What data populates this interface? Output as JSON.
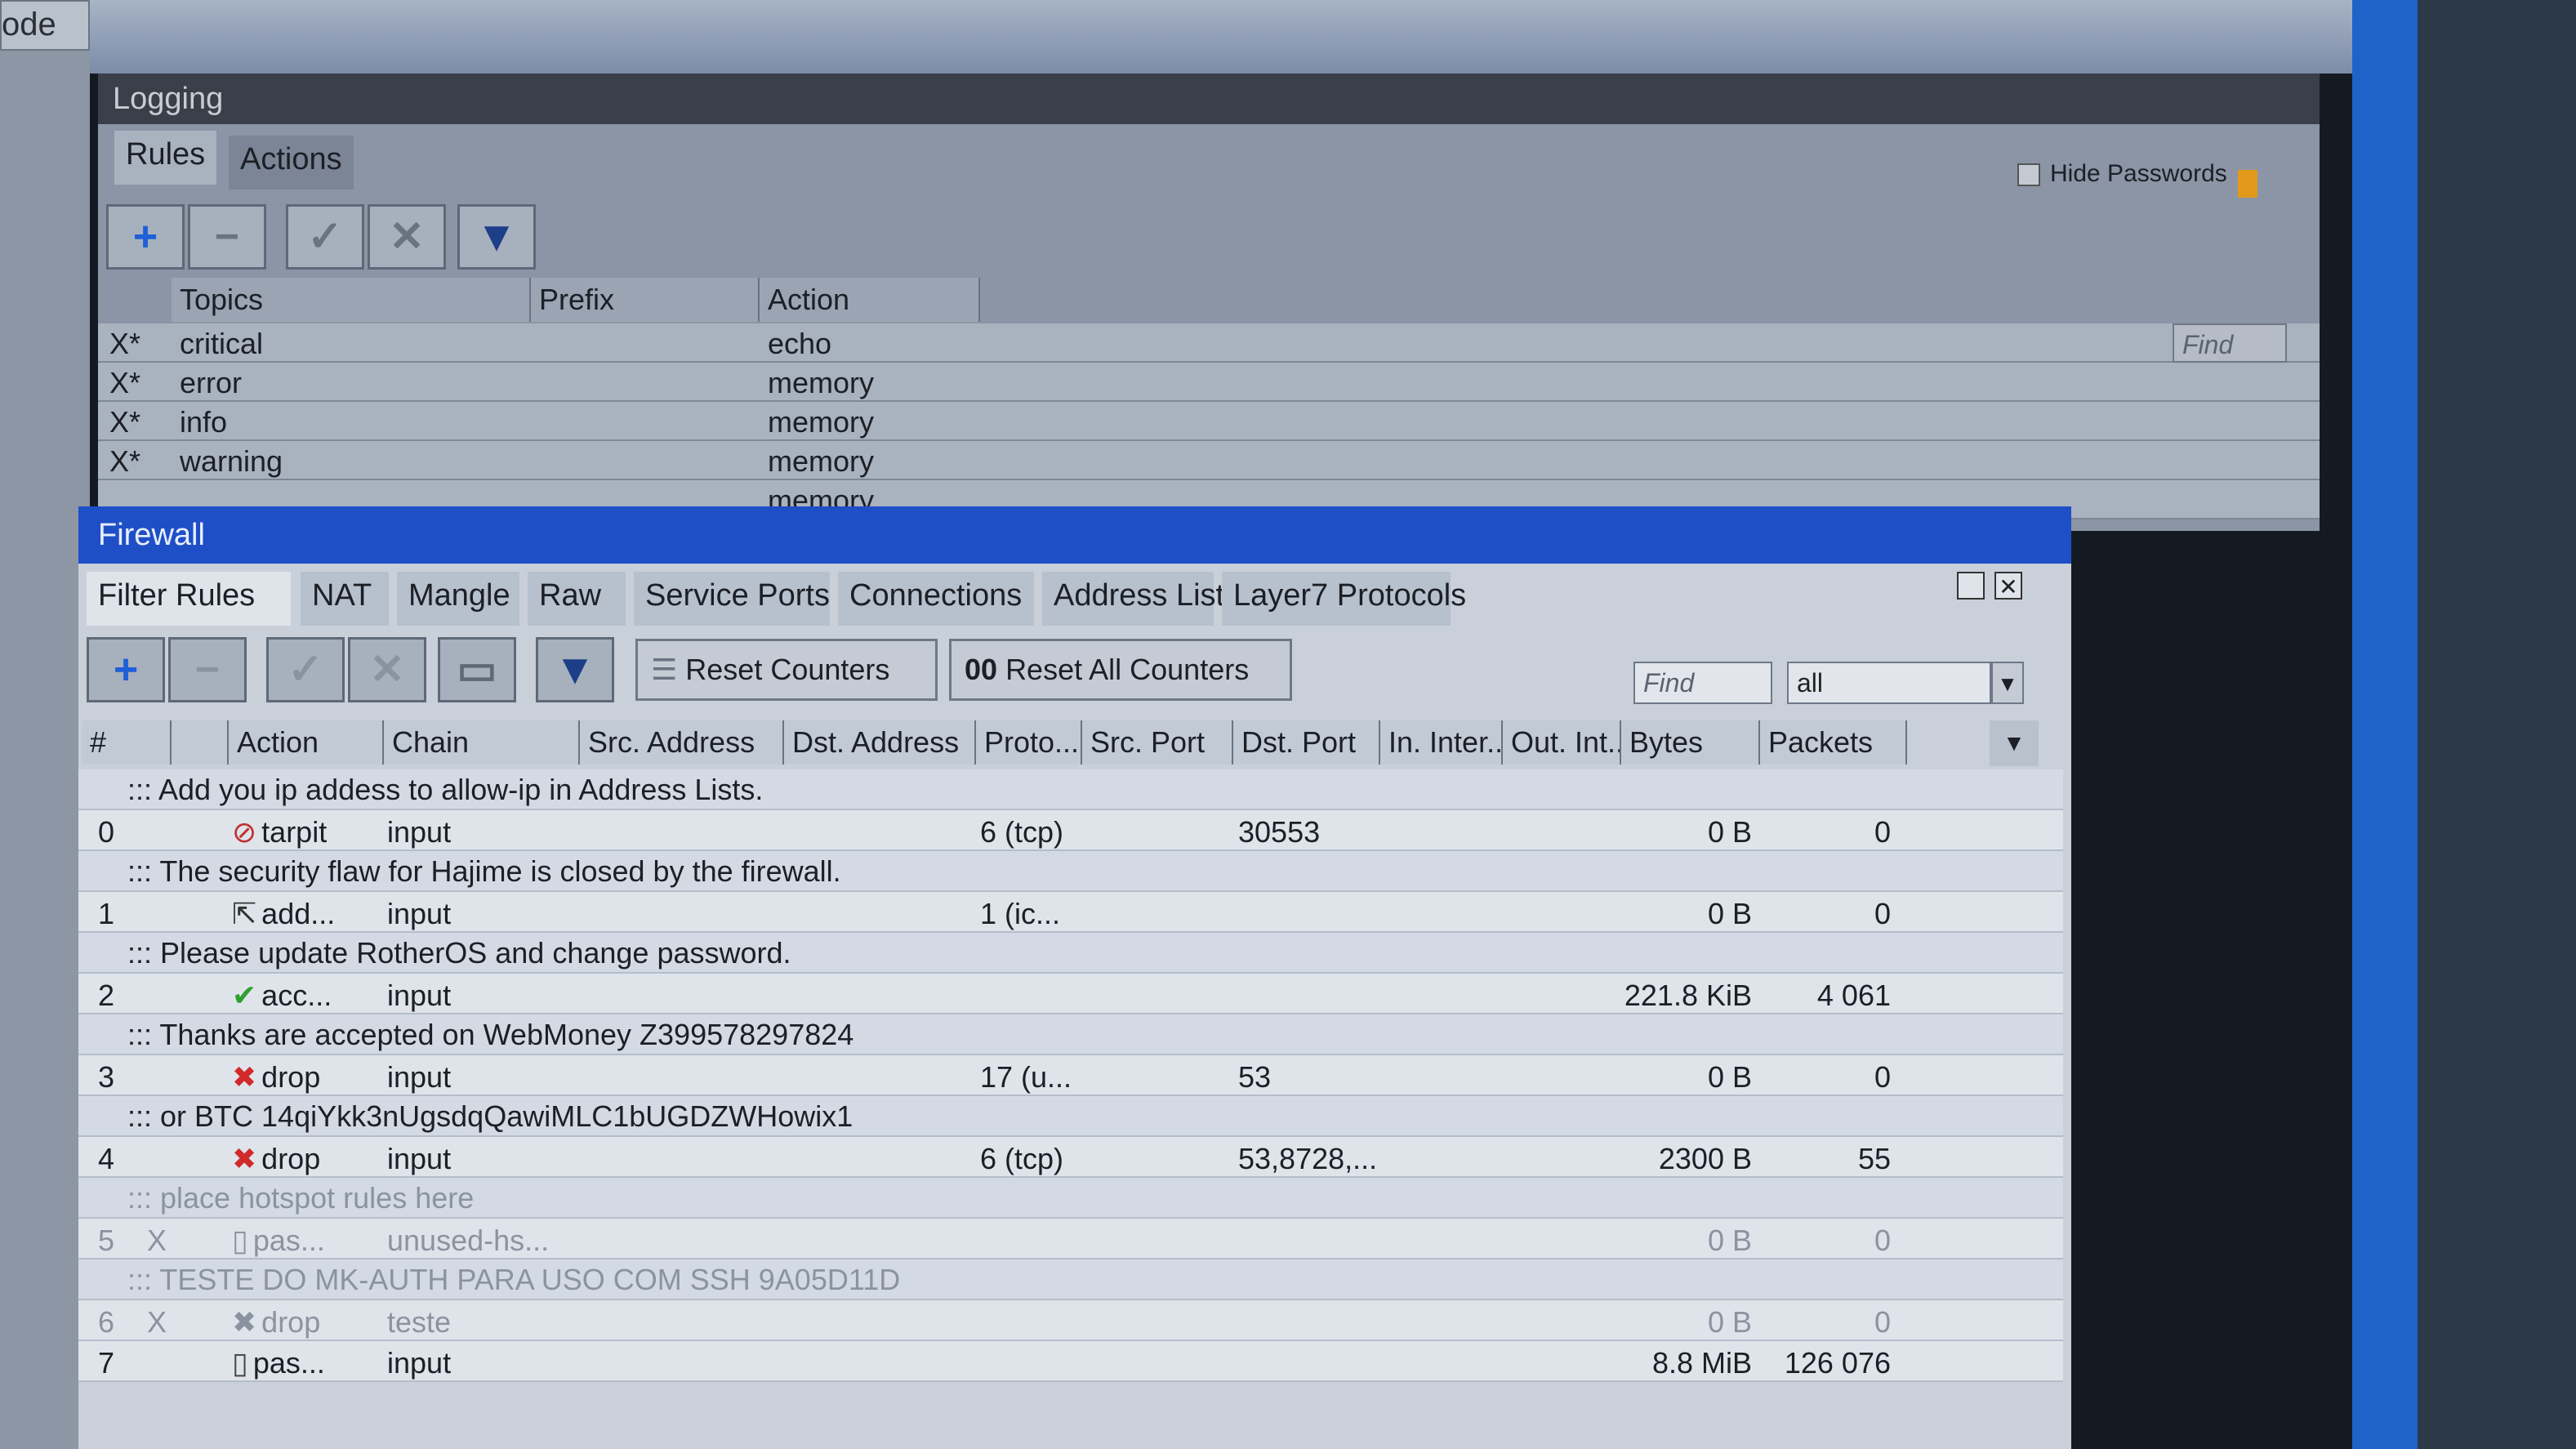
{
  "top_button": "ode",
  "logging": {
    "title": "Logging",
    "tabs": [
      "Rules",
      "Actions"
    ],
    "hide_passwords_label": "Hide Passwords",
    "find_placeholder": "Find",
    "columns": [
      "Topics",
      "Prefix",
      "Action"
    ],
    "rows": [
      {
        "flag": "X*",
        "topics": "critical",
        "prefix": "",
        "action": "echo"
      },
      {
        "flag": "X*",
        "topics": "error",
        "prefix": "",
        "action": "memory"
      },
      {
        "flag": "X*",
        "topics": "info",
        "prefix": "",
        "action": "memory"
      },
      {
        "flag": "X*",
        "topics": "warning",
        "prefix": "",
        "action": "memory"
      },
      {
        "flag": "",
        "topics": "",
        "prefix": "",
        "action": "memory"
      }
    ]
  },
  "firewall": {
    "title": "Firewall",
    "tabs": [
      "Filter Rules",
      "NAT",
      "Mangle",
      "Raw",
      "Service Ports",
      "Connections",
      "Address Lists",
      "Layer7 Protocols"
    ],
    "active_tab": "Filter Rules",
    "toolbar": {
      "reset_counters": "Reset Counters",
      "reset_all_counters": "Reset All Counters",
      "reset_all_icon_text": "00",
      "find_placeholder": "Find",
      "filter_select": "all"
    },
    "columns": [
      "#",
      "",
      "Action",
      "Chain",
      "Src. Address",
      "Dst. Address",
      "Proto...",
      "Src. Port",
      "Dst. Port",
      "In. Inter...",
      "Out. Int...",
      "Bytes",
      "Packets"
    ],
    "rows": [
      {
        "type": "comment",
        "text": "::: Add you ip addess to allow-ip in Address Lists."
      },
      {
        "type": "rule",
        "num": "0",
        "flag": "",
        "icon": "tarpit-icon",
        "action": "tarpit",
        "chain": "input",
        "proto": "6 (tcp)",
        "dst_port": "30553",
        "bytes": "0 B",
        "packets": "0"
      },
      {
        "type": "comment",
        "text": "::: The security flaw for Hajime is closed by the firewall."
      },
      {
        "type": "rule",
        "num": "1",
        "flag": "",
        "icon": "add-to-list-icon",
        "action": "add...",
        "chain": "input",
        "proto": "1 (ic...",
        "dst_port": "",
        "bytes": "0 B",
        "packets": "0"
      },
      {
        "type": "comment",
        "text": "::: Please update RotherOS and change password."
      },
      {
        "type": "rule",
        "num": "2",
        "flag": "",
        "icon": "accept-check-icon",
        "action": "acc...",
        "chain": "input",
        "proto": "",
        "dst_port": "",
        "bytes": "221.8 KiB",
        "packets": "4 061"
      },
      {
        "type": "comment",
        "text": "::: Thanks are accepted on WebMoney Z399578297824"
      },
      {
        "type": "rule",
        "num": "3",
        "flag": "",
        "icon": "drop-x-icon",
        "action": "drop",
        "chain": "input",
        "proto": "17 (u...",
        "dst_port": "53",
        "bytes": "0 B",
        "packets": "0"
      },
      {
        "type": "comment",
        "text": "::: or BTC 14qiYkk3nUgsdqQawiMLC1bUGDZWHowix1"
      },
      {
        "type": "rule",
        "num": "4",
        "flag": "",
        "icon": "drop-x-icon",
        "action": "drop",
        "chain": "input",
        "proto": "6 (tcp)",
        "dst_port": "53,8728,...",
        "bytes": "2300 B",
        "packets": "55"
      },
      {
        "type": "comment",
        "disabled": true,
        "text": "::: place hotspot rules here"
      },
      {
        "type": "rule",
        "disabled": true,
        "num": "5",
        "flag": "X",
        "icon": "passthrough-icon",
        "action": "pas...",
        "chain": "unused-hs...",
        "proto": "",
        "dst_port": "",
        "bytes": "0 B",
        "packets": "0"
      },
      {
        "type": "comment",
        "disabled": true,
        "text": "::: TESTE DO MK-AUTH PARA USO COM SSH 9A05D11D"
      },
      {
        "type": "rule",
        "disabled": true,
        "num": "6",
        "flag": "X",
        "icon": "drop-x-icon",
        "action": "drop",
        "chain": "teste",
        "proto": "",
        "dst_port": "",
        "bytes": "0 B",
        "packets": "0"
      },
      {
        "type": "rule",
        "num": "7",
        "flag": "",
        "icon": "passthrough-icon",
        "action": "pas...",
        "chain": "input",
        "proto": "",
        "dst_port": "",
        "bytes": "8.8 MiB",
        "packets": "126 076"
      }
    ]
  },
  "colors": {
    "firewall_title": "#1f4fc7",
    "logging_title": "#3a3f49",
    "drop": "#d12a2a",
    "accept": "#2ea02e",
    "add_icon": "#1f5fd8"
  }
}
